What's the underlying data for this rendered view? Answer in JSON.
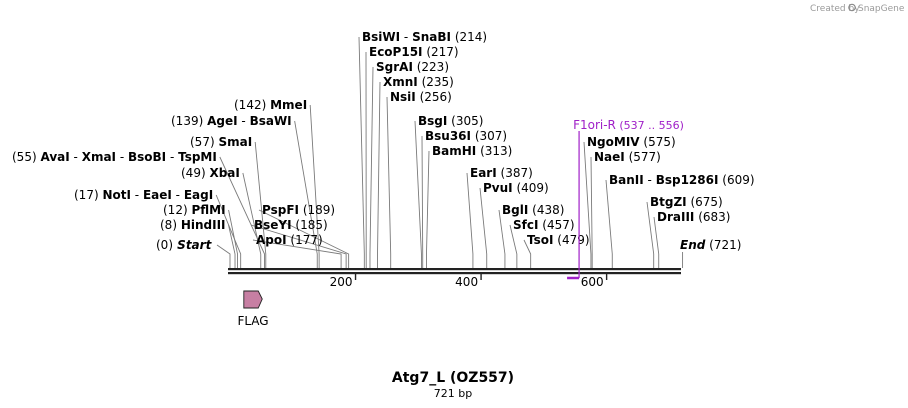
{
  "credit": {
    "created_by": "Created by",
    "brand": "SnapGene"
  },
  "map": {
    "title": "Atg7_L (OZ557)",
    "length_label": "721 bp"
  },
  "axis": {
    "ticks": [
      {
        "value": 200,
        "label": "200"
      },
      {
        "value": 400,
        "label": "400"
      },
      {
        "value": 600,
        "label": "600"
      }
    ]
  },
  "start_label": {
    "pos": "(0)",
    "name": "Start"
  },
  "end_label": {
    "pos": "(721)",
    "name": "End"
  },
  "enzymes_left": [
    {
      "id": "hindiii",
      "pos": "(8)",
      "names": [
        "HindIII"
      ],
      "site": 8
    },
    {
      "id": "pfimi",
      "pos": "(12)",
      "names": [
        "PflMI"
      ],
      "site": 12
    },
    {
      "id": "noti",
      "pos": "(17)",
      "names": [
        "NotI",
        "EaeI",
        "EagI"
      ],
      "site": 17
    },
    {
      "id": "xbai",
      "pos": "(49)",
      "names": [
        "XbaI"
      ],
      "site": 49
    },
    {
      "id": "avai",
      "pos": "(55)",
      "names": [
        "AvaI",
        "XmaI",
        "BsoBI",
        "TspMI"
      ],
      "site": 55
    },
    {
      "id": "smai",
      "pos": "(57)",
      "names": [
        "SmaI"
      ],
      "site": 57
    },
    {
      "id": "agei",
      "pos": "(139)",
      "names": [
        "AgeI",
        "BsaWI"
      ],
      "site": 139
    },
    {
      "id": "mmei",
      "pos": "(142)",
      "names": [
        "MmeI"
      ],
      "site": 142
    }
  ],
  "enzymes_right": [
    {
      "id": "apoi",
      "pos": "(177)",
      "names": [
        "ApoI"
      ],
      "site": 177
    },
    {
      "id": "bseyi",
      "pos": "(185)",
      "names": [
        "BseYI"
      ],
      "site": 185
    },
    {
      "id": "pspfi",
      "pos": "(189)",
      "names": [
        "PspFI"
      ],
      "site": 189
    },
    {
      "id": "bsiwi",
      "pos": "(214)",
      "names": [
        "BsiWI",
        "SnaBI"
      ],
      "site": 214
    },
    {
      "id": "ecop15i",
      "pos": "(217)",
      "names": [
        "EcoP15I"
      ],
      "site": 217
    },
    {
      "id": "sgrai",
      "pos": "(223)",
      "names": [
        "SgrAI"
      ],
      "site": 223
    },
    {
      "id": "xmni",
      "pos": "(235)",
      "names": [
        "XmnI"
      ],
      "site": 235
    },
    {
      "id": "nsii",
      "pos": "(256)",
      "names": [
        "NsiI"
      ],
      "site": 256
    },
    {
      "id": "bsgi",
      "pos": "(305)",
      "names": [
        "BsgI"
      ],
      "site": 305
    },
    {
      "id": "bsu36i",
      "pos": "(307)",
      "names": [
        "Bsu36I"
      ],
      "site": 307
    },
    {
      "id": "bamhi",
      "pos": "(313)",
      "names": [
        "BamHI"
      ],
      "site": 313
    },
    {
      "id": "eari",
      "pos": "(387)",
      "names": [
        "EarI"
      ],
      "site": 387
    },
    {
      "id": "pvui",
      "pos": "(409)",
      "names": [
        "PvuI"
      ],
      "site": 409
    },
    {
      "id": "bgli",
      "pos": "(438)",
      "names": [
        "BglI"
      ],
      "site": 438
    },
    {
      "id": "sfci",
      "pos": "(457)",
      "names": [
        "SfcI"
      ],
      "site": 457
    },
    {
      "id": "tsoi",
      "pos": "(479)",
      "names": [
        "TsoI"
      ],
      "site": 479
    },
    {
      "id": "ngomiv",
      "pos": "(575)",
      "names": [
        "NgoMIV"
      ],
      "site": 575
    },
    {
      "id": "naei",
      "pos": "(577)",
      "names": [
        "NaeI"
      ],
      "site": 577
    },
    {
      "id": "banii",
      "pos": "(609)",
      "names": [
        "BanII",
        "Bsp1286I"
      ],
      "site": 609
    },
    {
      "id": "btgzi",
      "pos": "(675)",
      "names": [
        "BtgZI"
      ],
      "site": 675
    },
    {
      "id": "draiii",
      "pos": "(683)",
      "names": [
        "DraIII"
      ],
      "site": 683
    }
  ],
  "features": [
    {
      "id": "f1ori",
      "name": "F1ori-R",
      "range": "(537 .. 556)",
      "start": 537,
      "end": 556,
      "color": "#a020c8"
    },
    {
      "id": "flag",
      "name": "FLAG",
      "start": 22,
      "end": 45,
      "color": "#c77fa3"
    }
  ],
  "colors": {
    "backbone": "#222222",
    "feature_primer": "#a020c8",
    "flag": "#c77fa3"
  }
}
